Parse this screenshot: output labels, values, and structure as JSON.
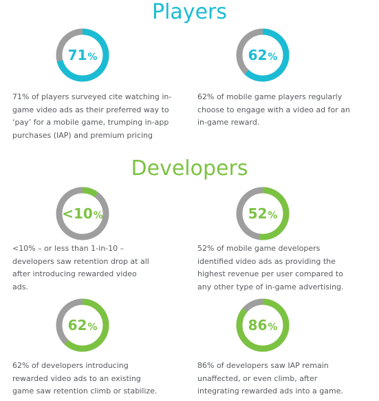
{
  "colors": {
    "players": "#1bbcd3",
    "developers": "#7cc242",
    "track": "#9e9e9e"
  },
  "players": {
    "title": "Players",
    "stats": [
      {
        "value": "71",
        "unit": "%",
        "fraction": 0.71,
        "description": "71% of players surveyed cite watching in-game video ads as their preferred way to ‘pay’ for a mobile game, trumping in-app purchases (IAP) and premium pricing"
      },
      {
        "value": "62",
        "unit": "%",
        "fraction": 0.62,
        "description": "62% of mobile game players regularly choose to engage with a video ad for an in-game reward."
      }
    ]
  },
  "developers": {
    "title": "Developers",
    "stats": [
      {
        "value": "<10",
        "unit": "%",
        "fraction": 0.1,
        "description": "<10% – or less than 1-in-10 – developers saw retention drop at all after introducing rewarded video ads."
      },
      {
        "value": "52",
        "unit": "%",
        "fraction": 0.52,
        "description": "52% of mobile game developers identified video ads as providing the highest revenue per user compared to any other type of in-game advertising."
      },
      {
        "value": "62",
        "unit": "%",
        "fraction": 0.62,
        "description": "62% of developers introducing rewarded video ads to an existing game saw retention climb or stabilize."
      },
      {
        "value": "86",
        "unit": "%",
        "fraction": 0.86,
        "description": "86% of developers saw IAP remain unaffected, or even climb, after integrating rewarded ads into a game."
      }
    ]
  }
}
